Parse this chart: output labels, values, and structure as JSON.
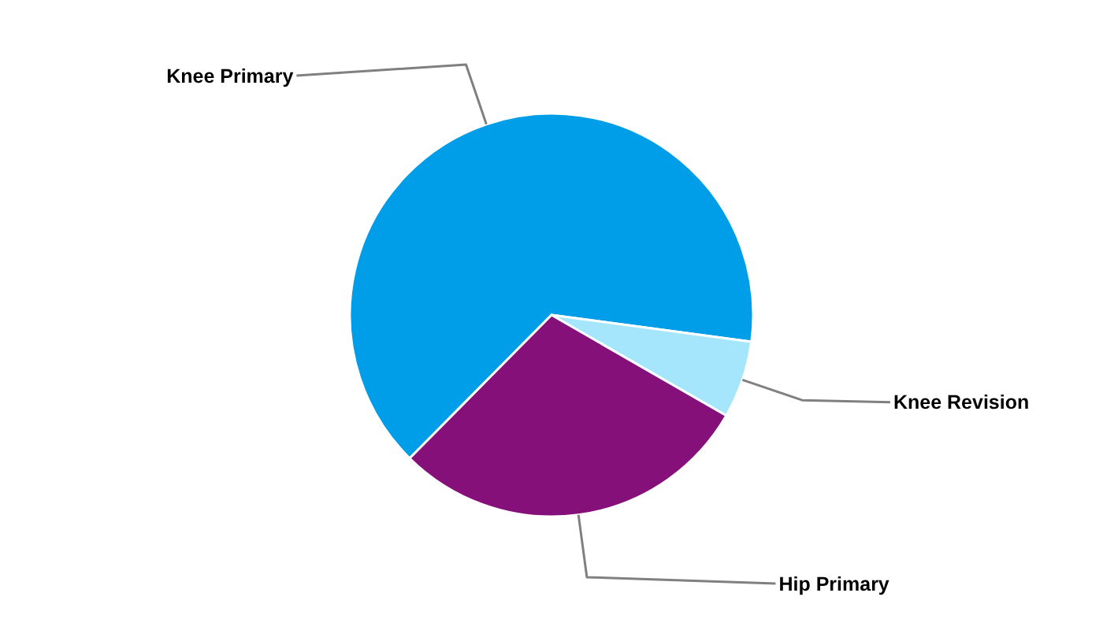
{
  "chart_data": {
    "type": "pie",
    "categories": [
      "Knee Primary",
      "Knee Revision",
      "Hip Primary"
    ],
    "values": [
      64.7,
      6.2,
      29.1
    ],
    "colors": [
      "#009ee8",
      "#a6e6fd",
      "#85107a"
    ]
  }
}
